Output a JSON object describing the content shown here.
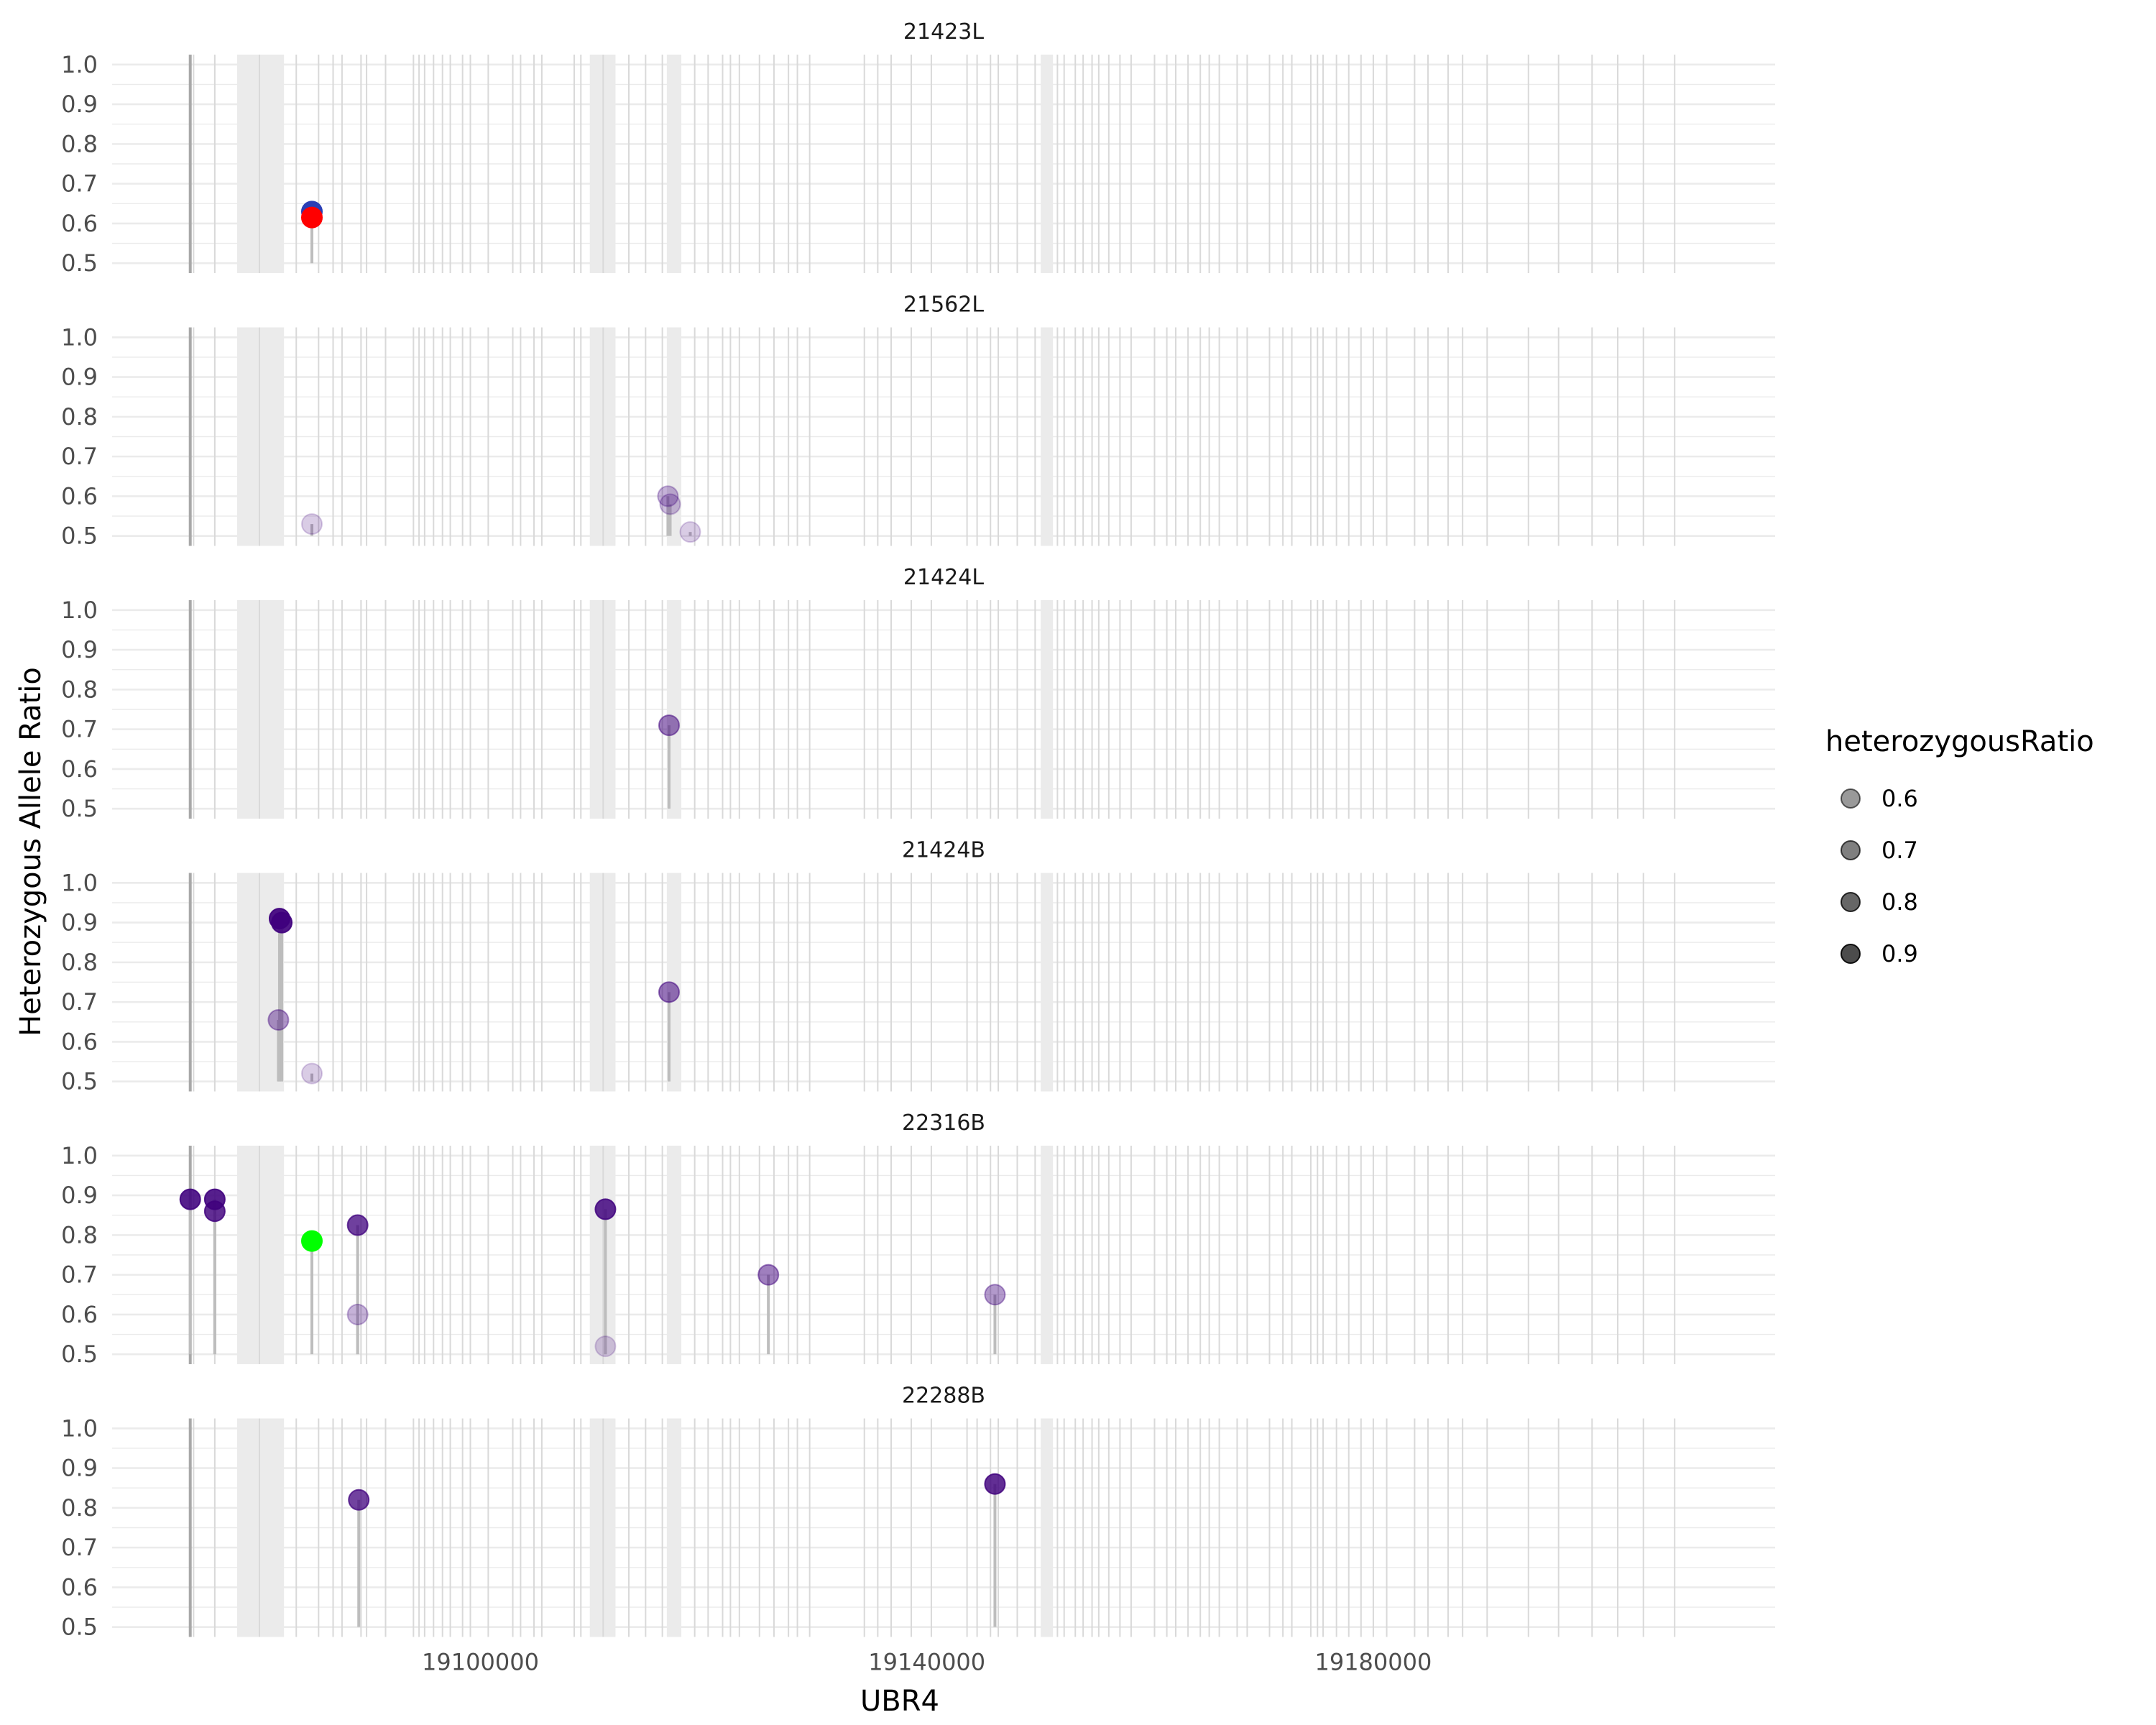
{
  "chart_data": {
    "type": "scatter",
    "xlabel": "UBR4",
    "ylabel": "Heterozygous Allele Ratio",
    "xlim": [
      19067000,
      19216000
    ],
    "ylim": [
      0.475,
      1.025
    ],
    "x_ticks": [
      19100000,
      19140000,
      19180000
    ],
    "x_tick_labels": [
      "19100000",
      "19140000",
      "19180000"
    ],
    "y_ticks": [
      0.5,
      0.6,
      0.7,
      0.8,
      0.9,
      1.0
    ],
    "y_tick_labels": [
      "0.5",
      "0.6",
      "0.7",
      "0.8",
      "0.9",
      "1.0"
    ],
    "grid": true,
    "colors": {
      "default": "#3f007d",
      "highlight_blue": "#2b3fb5",
      "highlight_red": "#ff0000",
      "highlight_green": "#00ff00",
      "stem": "#bdbdbd",
      "exon_line": "#d9d9d9",
      "exon_band": "#ebebeb",
      "gridline": "#ebebeb"
    },
    "exon_bands": [
      [
        19078200,
        19082400
      ],
      [
        19109800,
        19112100
      ],
      [
        19116700,
        19118000
      ],
      [
        19150200,
        19151300
      ]
    ],
    "exon_lines": [
      19074000,
      19074300,
      19076200,
      19080200,
      19083500,
      19085500,
      19086800,
      19087600,
      19089300,
      19089800,
      19091500,
      19094000,
      19094500,
      19095000,
      19095800,
      19096600,
      19097300,
      19098400,
      19099100,
      19100700,
      19102900,
      19103600,
      19104800,
      19105500,
      19108400,
      19109000,
      19111000,
      19113300,
      19114800,
      19116300,
      19119200,
      19120400,
      19121700,
      19122400,
      19123200,
      19125000,
      19126300,
      19127600,
      19128400,
      19129500,
      19134400,
      19135600,
      19136800,
      19138600,
      19140400,
      19143600,
      19144500,
      19145700,
      19146400,
      19148100,
      19149700,
      19151700,
      19152300,
      19153300,
      19154000,
      19154800,
      19155400,
      19156300,
      19157300,
      19158300,
      19160400,
      19161500,
      19162300,
      19163400,
      19164500,
      19165300,
      19166200,
      19167800,
      19168700,
      19170700,
      19171900,
      19172700,
      19174400,
      19175000,
      19175500,
      19176700,
      19177800,
      19178900,
      19180000,
      19181200,
      19183700,
      19184900,
      19186700,
      19188000,
      19190200,
      19193900,
      19196600,
      19199600,
      19201900,
      19204200,
      19207000
    ],
    "exon_lines_dark": [
      19074000
    ],
    "legend": {
      "title": "heterozygousRatio",
      "position": "right",
      "entries": [
        {
          "label": "0.6",
          "alpha": 0.6
        },
        {
          "label": "0.7",
          "alpha": 0.7
        },
        {
          "label": "0.8",
          "alpha": 0.8
        },
        {
          "label": "0.9",
          "alpha": 0.9
        }
      ]
    },
    "panels": [
      {
        "title": "21423L",
        "points": [
          {
            "x": 19084900,
            "y": 0.63,
            "color": "#2b3fb5"
          },
          {
            "x": 19084900,
            "y": 0.615,
            "color": "#ff0000"
          }
        ]
      },
      {
        "title": "21562L",
        "points": [
          {
            "x": 19084900,
            "y": 0.53
          },
          {
            "x": 19116800,
            "y": 0.6
          },
          {
            "x": 19117000,
            "y": 0.58
          },
          {
            "x": 19118800,
            "y": 0.51
          }
        ]
      },
      {
        "title": "21424L",
        "points": [
          {
            "x": 19116900,
            "y": 0.71
          }
        ]
      },
      {
        "title": "21424B",
        "points": [
          {
            "x": 19082000,
            "y": 0.91
          },
          {
            "x": 19082200,
            "y": 0.9
          },
          {
            "x": 19081900,
            "y": 0.655
          },
          {
            "x": 19084900,
            "y": 0.52
          },
          {
            "x": 19116900,
            "y": 0.725
          }
        ]
      },
      {
        "title": "22316B",
        "points": [
          {
            "x": 19074000,
            "y": 0.89
          },
          {
            "x": 19076200,
            "y": 0.89
          },
          {
            "x": 19076200,
            "y": 0.86
          },
          {
            "x": 19084900,
            "y": 0.785,
            "color": "#00ff00"
          },
          {
            "x": 19089000,
            "y": 0.825
          },
          {
            "x": 19089000,
            "y": 0.6
          },
          {
            "x": 19111200,
            "y": 0.865
          },
          {
            "x": 19111200,
            "y": 0.52
          },
          {
            "x": 19125800,
            "y": 0.7
          },
          {
            "x": 19146100,
            "y": 0.65
          }
        ]
      },
      {
        "title": "22288B",
        "points": [
          {
            "x": 19089100,
            "y": 0.82
          },
          {
            "x": 19146100,
            "y": 0.86
          }
        ]
      }
    ]
  }
}
